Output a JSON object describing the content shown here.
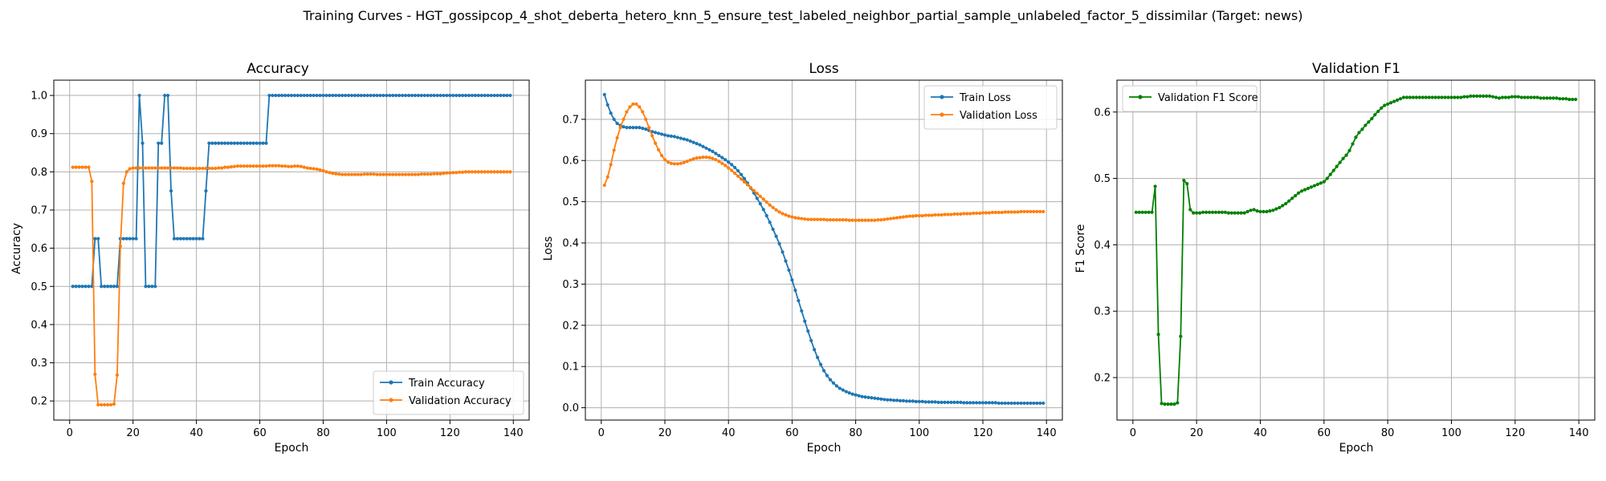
{
  "suptitle": "Training Curves - HGT_gossipcop_4_shot_deberta_hetero_knn_5_ensure_test_labeled_neighbor_partial_sample_unlabeled_factor_5_dissimilar (Target: news)",
  "colors": {
    "train": "#1f77b4",
    "val": "#ff7f0e",
    "f1": "#008000",
    "grid": "#b0b0b0"
  },
  "chart_data": [
    {
      "type": "line",
      "title": "Accuracy",
      "xlabel": "Epoch",
      "ylabel": "Accuracy",
      "xlim": [
        -5,
        145
      ],
      "ylim": [
        0.15,
        1.04
      ],
      "xticks": [
        0,
        20,
        40,
        60,
        80,
        100,
        120,
        140
      ],
      "yticks": [
        0.2,
        0.3,
        0.4,
        0.5,
        0.6,
        0.7,
        0.8,
        0.9,
        1.0
      ],
      "grid": true,
      "legend_loc": "lower-right",
      "series": [
        {
          "name": "Train Accuracy",
          "color": "#1f77b4",
          "x_start": 1,
          "values": [
            0.5,
            0.5,
            0.5,
            0.5,
            0.5,
            0.5,
            0.5,
            0.625,
            0.625,
            0.5,
            0.5,
            0.5,
            0.5,
            0.5,
            0.5,
            0.625,
            0.625,
            0.625,
            0.625,
            0.625,
            0.625,
            1.0,
            0.875,
            0.5,
            0.5,
            0.5,
            0.5,
            0.875,
            0.875,
            1.0,
            1.0,
            0.75,
            0.625,
            0.625,
            0.625,
            0.625,
            0.625,
            0.625,
            0.625,
            0.625,
            0.625,
            0.625,
            0.75,
            0.875,
            0.875,
            0.875,
            0.875,
            0.875,
            0.875,
            0.875,
            0.875,
            0.875,
            0.875,
            0.875,
            0.875,
            0.875,
            0.875,
            0.875,
            0.875,
            0.875,
            0.875,
            0.875,
            1.0,
            1.0,
            1.0,
            1.0,
            1.0,
            1.0,
            1.0,
            1.0,
            1.0,
            1.0,
            1.0,
            1.0,
            1.0,
            1.0,
            1.0,
            1.0,
            1.0,
            1.0,
            1.0,
            1.0,
            1.0,
            1.0,
            1.0,
            1.0,
            1.0,
            1.0,
            1.0,
            1.0,
            1.0,
            1.0,
            1.0,
            1.0,
            1.0,
            1.0,
            1.0,
            1.0,
            1.0,
            1.0,
            1.0,
            1.0,
            1.0,
            1.0,
            1.0,
            1.0,
            1.0,
            1.0,
            1.0,
            1.0,
            1.0,
            1.0,
            1.0,
            1.0,
            1.0,
            1.0,
            1.0,
            1.0,
            1.0,
            1.0,
            1.0,
            1.0,
            1.0,
            1.0,
            1.0,
            1.0,
            1.0,
            1.0,
            1.0,
            1.0,
            1.0,
            1.0,
            1.0,
            1.0,
            1.0,
            1.0,
            1.0,
            1.0,
            1.0
          ]
        },
        {
          "name": "Validation Accuracy",
          "color": "#ff7f0e",
          "x_start": 1,
          "values": [
            0.812,
            0.812,
            0.812,
            0.812,
            0.812,
            0.812,
            0.775,
            0.27,
            0.19,
            0.19,
            0.19,
            0.19,
            0.19,
            0.192,
            0.268,
            0.605,
            0.77,
            0.8,
            0.808,
            0.81,
            0.81,
            0.81,
            0.81,
            0.81,
            0.81,
            0.81,
            0.81,
            0.81,
            0.81,
            0.81,
            0.81,
            0.81,
            0.81,
            0.81,
            0.81,
            0.809,
            0.809,
            0.809,
            0.809,
            0.809,
            0.809,
            0.809,
            0.809,
            0.809,
            0.809,
            0.809,
            0.81,
            0.81,
            0.812,
            0.812,
            0.813,
            0.814,
            0.815,
            0.815,
            0.815,
            0.815,
            0.815,
            0.815,
            0.815,
            0.815,
            0.815,
            0.815,
            0.816,
            0.816,
            0.816,
            0.816,
            0.815,
            0.815,
            0.814,
            0.814,
            0.815,
            0.815,
            0.814,
            0.812,
            0.81,
            0.809,
            0.808,
            0.807,
            0.805,
            0.803,
            0.8,
            0.798,
            0.796,
            0.795,
            0.794,
            0.793,
            0.793,
            0.793,
            0.793,
            0.793,
            0.793,
            0.793,
            0.794,
            0.794,
            0.794,
            0.794,
            0.793,
            0.793,
            0.793,
            0.793,
            0.793,
            0.793,
            0.793,
            0.793,
            0.793,
            0.793,
            0.793,
            0.793,
            0.793,
            0.793,
            0.794,
            0.794,
            0.794,
            0.794,
            0.795,
            0.795,
            0.795,
            0.796,
            0.797,
            0.797,
            0.798,
            0.798,
            0.799,
            0.799,
            0.8,
            0.8,
            0.8,
            0.8,
            0.8,
            0.8,
            0.8,
            0.8,
            0.8,
            0.8,
            0.8,
            0.8,
            0.8,
            0.8,
            0.8
          ]
        }
      ]
    },
    {
      "type": "line",
      "title": "Loss",
      "xlabel": "Epoch",
      "ylabel": "Loss",
      "xlim": [
        -5,
        145
      ],
      "ylim": [
        -0.03,
        0.795
      ],
      "xticks": [
        0,
        20,
        40,
        60,
        80,
        100,
        120,
        140
      ],
      "yticks": [
        0.0,
        0.1,
        0.2,
        0.3,
        0.4,
        0.5,
        0.6,
        0.7
      ],
      "grid": true,
      "legend_loc": "upper-right",
      "series": [
        {
          "name": "Train Loss",
          "color": "#1f77b4",
          "x_start": 1,
          "values": [
            0.76,
            0.735,
            0.715,
            0.7,
            0.69,
            0.685,
            0.682,
            0.68,
            0.68,
            0.68,
            0.68,
            0.68,
            0.678,
            0.676,
            0.673,
            0.67,
            0.668,
            0.666,
            0.664,
            0.662,
            0.66,
            0.659,
            0.658,
            0.656,
            0.654,
            0.652,
            0.65,
            0.647,
            0.644,
            0.641,
            0.638,
            0.634,
            0.63,
            0.626,
            0.622,
            0.617,
            0.612,
            0.607,
            0.602,
            0.596,
            0.59,
            0.583,
            0.575,
            0.566,
            0.556,
            0.545,
            0.533,
            0.521,
            0.508,
            0.495,
            0.481,
            0.466,
            0.45,
            0.433,
            0.416,
            0.398,
            0.378,
            0.356,
            0.334,
            0.31,
            0.285,
            0.26,
            0.235,
            0.21,
            0.186,
            0.163,
            0.141,
            0.122,
            0.105,
            0.09,
            0.078,
            0.068,
            0.06,
            0.053,
            0.047,
            0.043,
            0.039,
            0.036,
            0.033,
            0.031,
            0.029,
            0.027,
            0.026,
            0.025,
            0.024,
            0.023,
            0.022,
            0.021,
            0.02,
            0.019,
            0.019,
            0.018,
            0.018,
            0.017,
            0.017,
            0.016,
            0.016,
            0.016,
            0.015,
            0.015,
            0.015,
            0.014,
            0.014,
            0.014,
            0.014,
            0.013,
            0.013,
            0.013,
            0.013,
            0.013,
            0.013,
            0.013,
            0.013,
            0.012,
            0.012,
            0.012,
            0.012,
            0.012,
            0.012,
            0.012,
            0.012,
            0.012,
            0.012,
            0.012,
            0.011,
            0.011,
            0.011,
            0.011,
            0.011,
            0.011,
            0.011,
            0.011,
            0.011,
            0.011,
            0.011,
            0.011,
            0.011,
            0.011,
            0.011
          ]
        },
        {
          "name": "Validation Loss",
          "color": "#ff7f0e",
          "x_start": 1,
          "values": [
            0.54,
            0.56,
            0.59,
            0.625,
            0.655,
            0.68,
            0.7,
            0.718,
            0.73,
            0.737,
            0.737,
            0.73,
            0.718,
            0.7,
            0.68,
            0.66,
            0.642,
            0.626,
            0.612,
            0.602,
            0.596,
            0.593,
            0.592,
            0.592,
            0.593,
            0.595,
            0.598,
            0.601,
            0.604,
            0.606,
            0.607,
            0.608,
            0.608,
            0.607,
            0.605,
            0.602,
            0.598,
            0.593,
            0.588,
            0.582,
            0.576,
            0.569,
            0.562,
            0.555,
            0.548,
            0.541,
            0.534,
            0.527,
            0.52,
            0.513,
            0.506,
            0.499,
            0.492,
            0.486,
            0.48,
            0.475,
            0.471,
            0.468,
            0.465,
            0.463,
            0.461,
            0.46,
            0.459,
            0.458,
            0.457,
            0.457,
            0.457,
            0.457,
            0.457,
            0.457,
            0.456,
            0.456,
            0.456,
            0.456,
            0.456,
            0.456,
            0.456,
            0.455,
            0.455,
            0.455,
            0.455,
            0.455,
            0.455,
            0.455,
            0.455,
            0.455,
            0.456,
            0.456,
            0.457,
            0.458,
            0.459,
            0.46,
            0.461,
            0.462,
            0.463,
            0.464,
            0.465,
            0.465,
            0.466,
            0.466,
            0.466,
            0.467,
            0.467,
            0.467,
            0.468,
            0.468,
            0.468,
            0.469,
            0.469,
            0.469,
            0.47,
            0.47,
            0.47,
            0.471,
            0.471,
            0.471,
            0.472,
            0.472,
            0.472,
            0.473,
            0.473,
            0.473,
            0.474,
            0.474,
            0.474,
            0.474,
            0.475,
            0.475,
            0.475,
            0.475,
            0.475,
            0.476,
            0.476,
            0.476,
            0.476,
            0.476,
            0.476,
            0.476,
            0.476
          ]
        }
      ]
    },
    {
      "type": "line",
      "title": "Validation F1",
      "xlabel": "Epoch",
      "ylabel": "F1 Score",
      "xlim": [
        -5,
        145
      ],
      "ylim": [
        0.136,
        0.648
      ],
      "xticks": [
        0,
        20,
        40,
        60,
        80,
        100,
        120,
        140
      ],
      "yticks": [
        0.2,
        0.3,
        0.4,
        0.5,
        0.6
      ],
      "grid": true,
      "legend_loc": "upper-left",
      "series": [
        {
          "name": "Validation F1 Score",
          "color": "#008000",
          "x_start": 1,
          "values": [
            0.449,
            0.449,
            0.449,
            0.449,
            0.449,
            0.449,
            0.488,
            0.265,
            0.161,
            0.16,
            0.16,
            0.16,
            0.16,
            0.162,
            0.262,
            0.497,
            0.492,
            0.453,
            0.448,
            0.448,
            0.448,
            0.449,
            0.449,
            0.449,
            0.449,
            0.449,
            0.449,
            0.449,
            0.449,
            0.448,
            0.448,
            0.448,
            0.448,
            0.448,
            0.448,
            0.45,
            0.452,
            0.453,
            0.451,
            0.45,
            0.45,
            0.45,
            0.451,
            0.452,
            0.454,
            0.456,
            0.459,
            0.462,
            0.466,
            0.47,
            0.474,
            0.478,
            0.481,
            0.483,
            0.485,
            0.487,
            0.489,
            0.491,
            0.493,
            0.495,
            0.5,
            0.506,
            0.512,
            0.518,
            0.524,
            0.53,
            0.535,
            0.542,
            0.552,
            0.562,
            0.569,
            0.574,
            0.58,
            0.585,
            0.59,
            0.596,
            0.601,
            0.606,
            0.61,
            0.612,
            0.614,
            0.616,
            0.618,
            0.62,
            0.622,
            0.622,
            0.622,
            0.622,
            0.622,
            0.622,
            0.622,
            0.622,
            0.622,
            0.622,
            0.622,
            0.622,
            0.622,
            0.622,
            0.622,
            0.622,
            0.622,
            0.622,
            0.622,
            0.623,
            0.623,
            0.624,
            0.624,
            0.624,
            0.624,
            0.624,
            0.624,
            0.624,
            0.623,
            0.622,
            0.621,
            0.622,
            0.622,
            0.622,
            0.623,
            0.623,
            0.623,
            0.622,
            0.622,
            0.622,
            0.622,
            0.622,
            0.622,
            0.621,
            0.621,
            0.621,
            0.621,
            0.621,
            0.621,
            0.62,
            0.62,
            0.62,
            0.619,
            0.619,
            0.619
          ]
        }
      ]
    }
  ]
}
